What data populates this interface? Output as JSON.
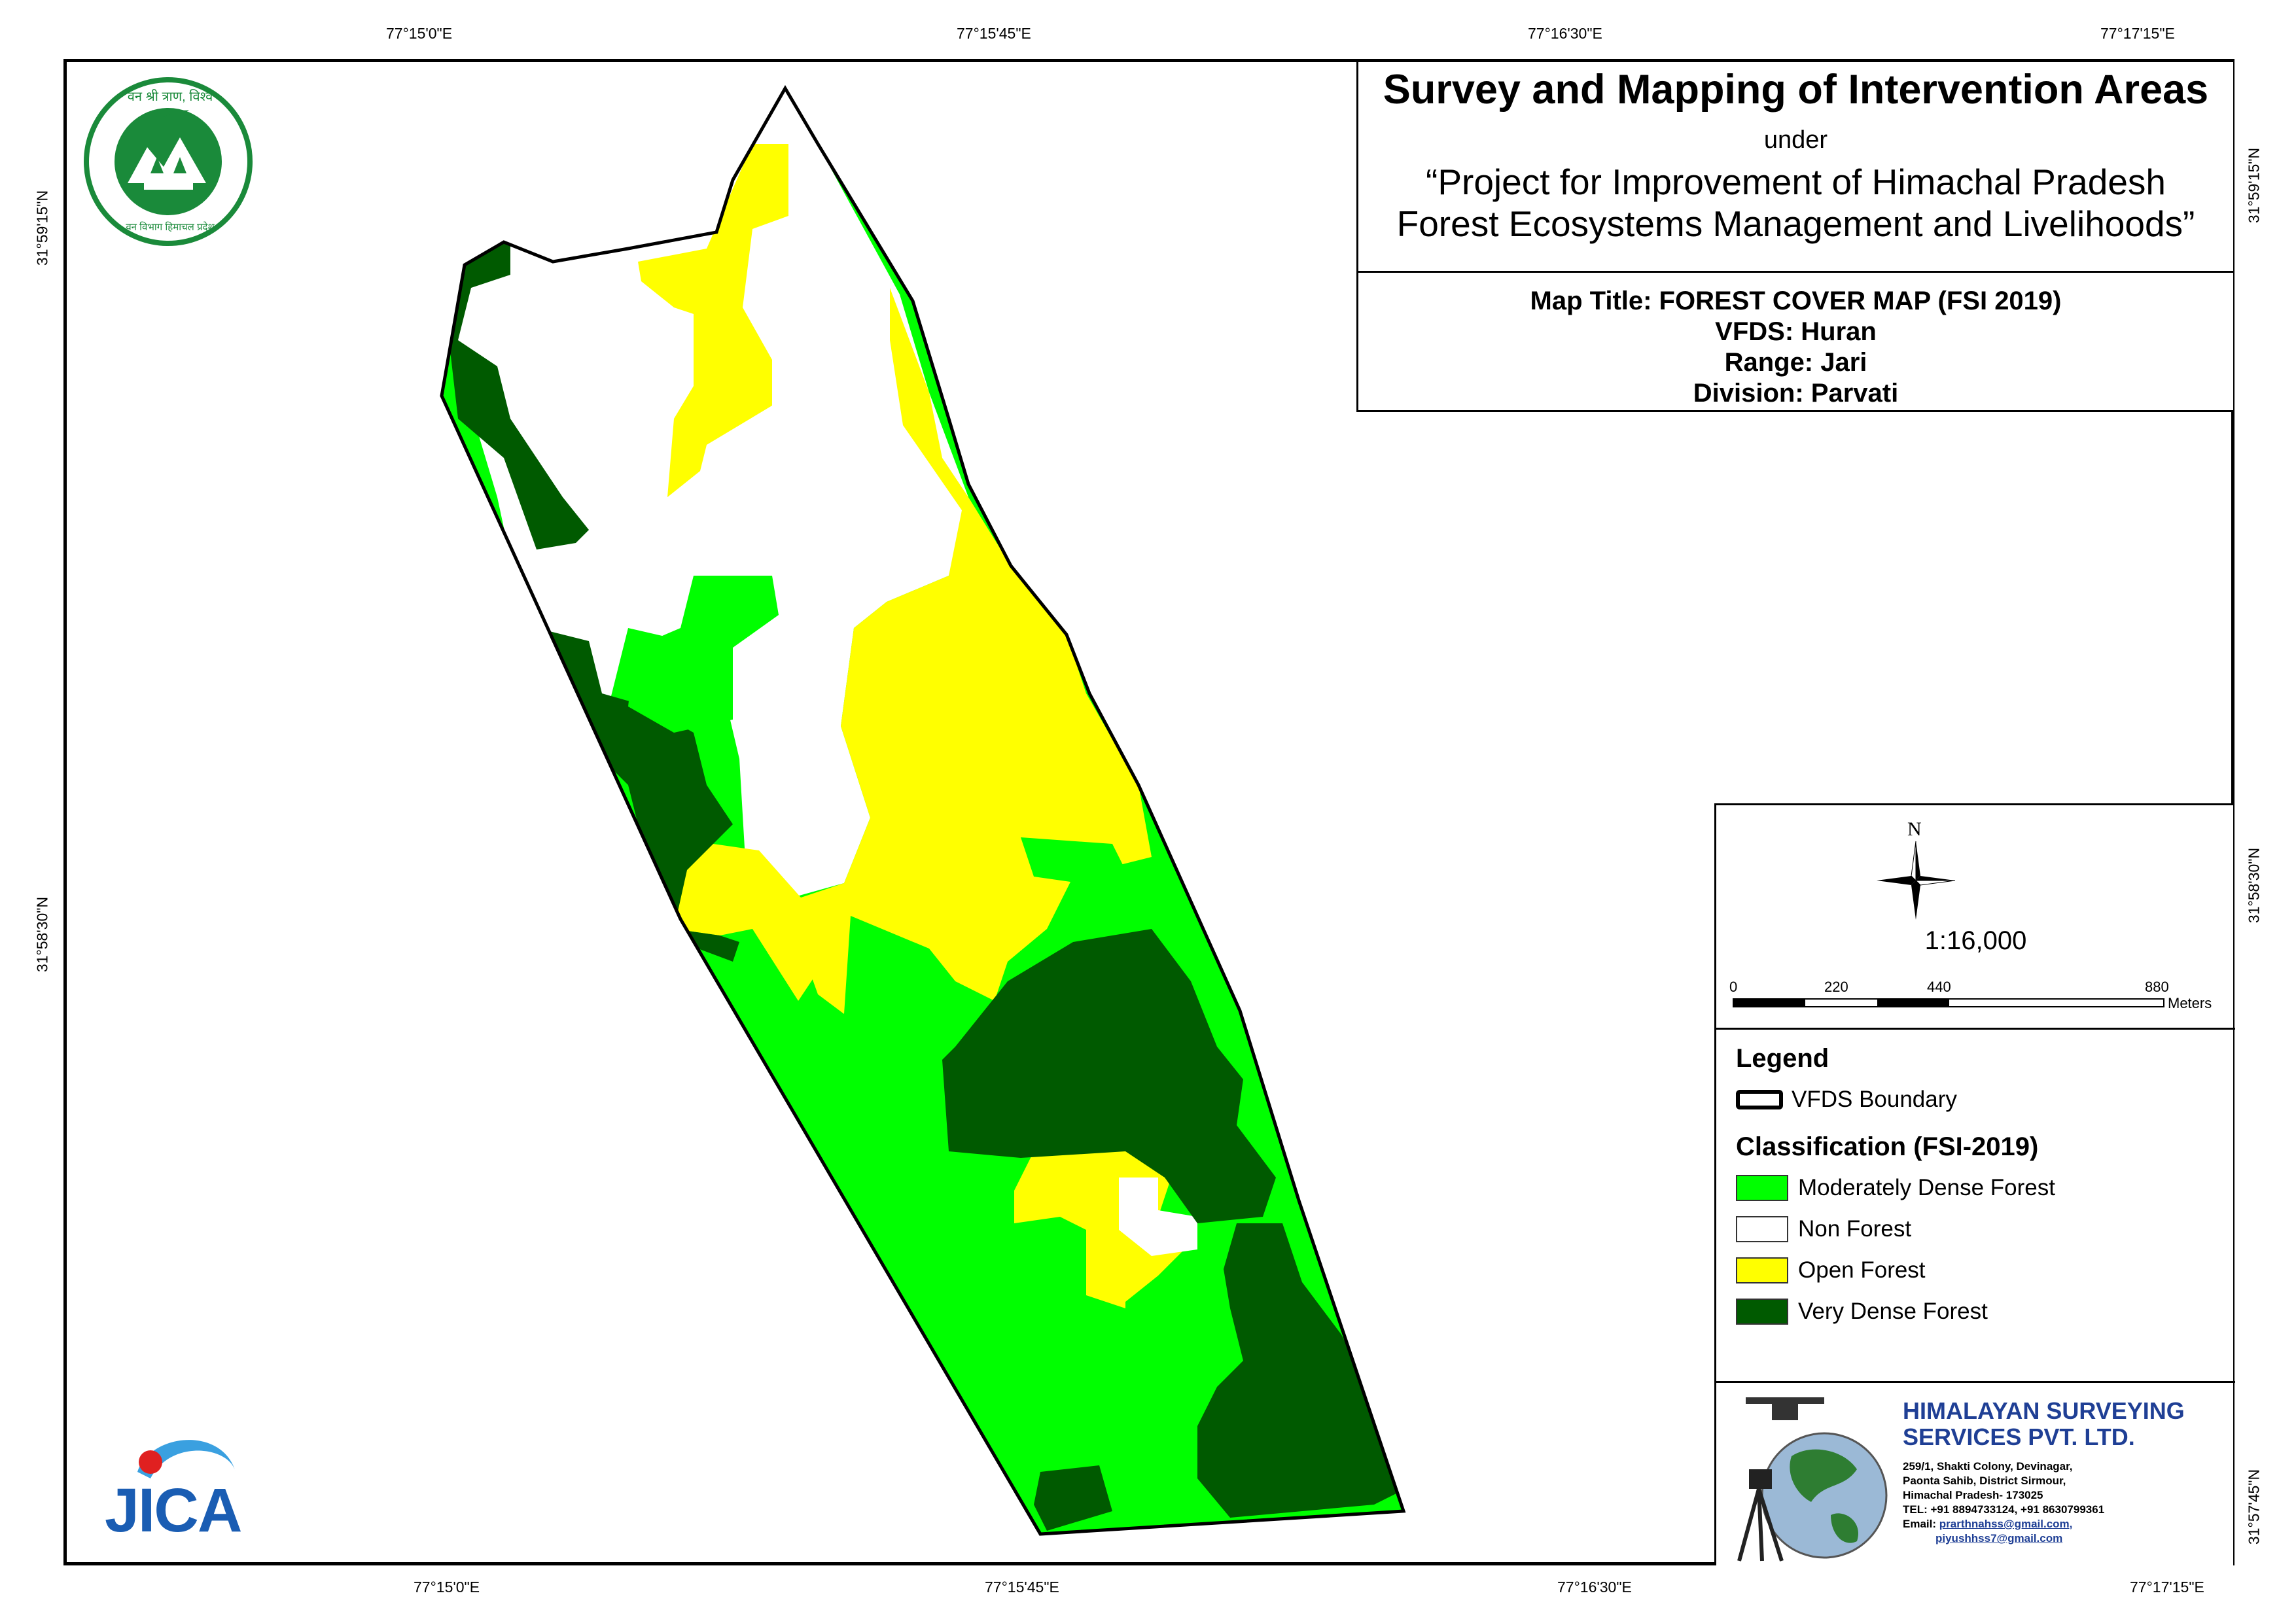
{
  "map": {
    "coords": {
      "top": [
        "77°15'0\"E",
        "77°15'45\"E",
        "77°16'30\"E",
        "77°17'15\"E"
      ],
      "bottom": [
        "77°15'0\"E",
        "77°15'45\"E",
        "77°16'30\"E",
        "77°17'15\"E"
      ],
      "left": [
        "31°59'15\"N",
        "31°58'30\"N"
      ],
      "right": [
        "31°59'15\"N",
        "31°58'30\"N",
        "31°57'45\"N"
      ]
    },
    "layers": {
      "boundary": "VFDS Boundary",
      "classes": [
        "Moderately Dense Forest",
        "Non Forest",
        "Open Forest",
        "Very Dense Forest"
      ]
    }
  },
  "title": {
    "heading": "Survey and Mapping of Intervention Areas",
    "under": "under",
    "project_line1": "“Project for Improvement of Himachal Pradesh",
    "project_line2": "Forest Ecosystems Management and Livelihoods”"
  },
  "info": {
    "map_title": "Map Title: FOREST COVER MAP (FSI 2019)",
    "vfds": "VFDS: Huran",
    "range": "Range: Jari",
    "division": "Division: Parvati"
  },
  "north": "N",
  "scale": {
    "ratio": "1:16,000",
    "ticks": [
      "0",
      "220",
      "440",
      "880"
    ],
    "unit": "Meters"
  },
  "legend": {
    "title": "Legend",
    "boundary_label": "VFDS Boundary",
    "classification_title": "Classification (FSI-2019)",
    "items": [
      {
        "label": "Moderately Dense Forest",
        "color": "#00ff00"
      },
      {
        "label": "Non Forest",
        "color": "#ffffff"
      },
      {
        "label": "Open Forest",
        "color": "#ffff00"
      },
      {
        "label": "Very Dense Forest",
        "color": "#005a00"
      }
    ]
  },
  "company": {
    "name_line1": "HIMALAYAN SURVEYING",
    "name_line2": "SERVICES PVT. LTD.",
    "addr1": "259/1, Shakti Colony, Devinagar,",
    "addr2": "Paonta Sahib, District Sirmour,",
    "addr3": "Himachal Pradesh- 173025",
    "tel": "TEL: +91 8894733124, +91 8630799361",
    "email_label": "Email:",
    "email1": "prarthnahss@gmail.com,",
    "email2": "piyushhss7@gmail.com"
  },
  "logos": {
    "hp_forest_top": "वन श्री त्राण, विश्व कल्याण",
    "hp_forest_bottom": "वन विभाग हिमाचल प्रदेश",
    "jica": "JICA"
  },
  "colors": {
    "moderate": "#00ff00",
    "non_forest": "#ffffff",
    "open": "#ffff00",
    "very_dense": "#005a00",
    "company_blue": "#1f3f95"
  }
}
